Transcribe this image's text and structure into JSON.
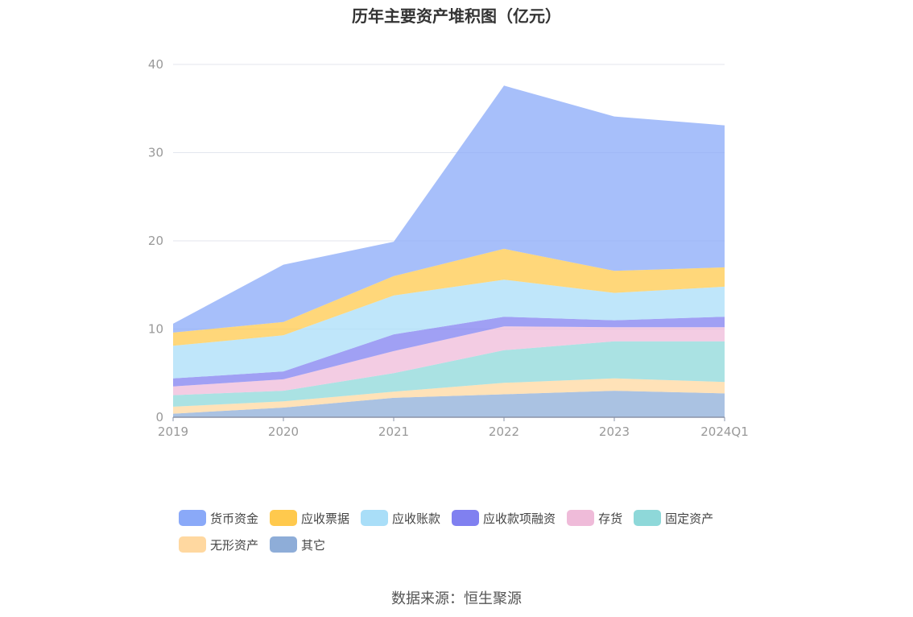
{
  "chart_data": {
    "type": "area",
    "stacked": true,
    "title": "历年主要资产堆积图（亿元）",
    "categories": [
      "2019",
      "2020",
      "2021",
      "2022",
      "2023",
      "2024Q1"
    ],
    "ylim": [
      0,
      40
    ],
    "yticks": [
      "0",
      "10",
      "20",
      "30",
      "40"
    ],
    "grid": true,
    "legend_position": "bottom",
    "series": [
      {
        "name": "其它",
        "color": "#8eadd8",
        "values": [
          0.4,
          1.1,
          2.2,
          2.6,
          3.0,
          2.7
        ]
      },
      {
        "name": "无形资产",
        "color": "#ffd8a0",
        "values": [
          0.8,
          0.7,
          0.7,
          1.3,
          1.4,
          1.3
        ]
      },
      {
        "name": "固定资产",
        "color": "#8ed8d9",
        "values": [
          1.3,
          1.2,
          2.1,
          3.7,
          4.2,
          4.6
        ]
      },
      {
        "name": "存货",
        "color": "#efbbd9",
        "values": [
          1.0,
          1.3,
          2.5,
          2.7,
          1.6,
          1.6
        ]
      },
      {
        "name": "应收款项融资",
        "color": "#8080f0",
        "values": [
          0.9,
          0.9,
          1.9,
          1.1,
          0.8,
          1.2
        ]
      },
      {
        "name": "应收账款",
        "color": "#a9def8",
        "values": [
          3.7,
          4.1,
          4.4,
          4.2,
          3.1,
          3.4
        ]
      },
      {
        "name": "应收票据",
        "color": "#ffc94d",
        "values": [
          1.5,
          1.5,
          2.2,
          3.5,
          2.5,
          2.2
        ]
      },
      {
        "name": "货币资金",
        "color": "#8aa9f8",
        "values": [
          1.0,
          6.5,
          3.9,
          18.5,
          17.5,
          16.1
        ]
      }
    ],
    "legend_order": [
      "货币资金",
      "应收票据",
      "应收账款",
      "应收款项融资",
      "存货",
      "固定资产",
      "无形资产",
      "其它"
    ]
  },
  "footer": {
    "source": "数据来源：恒生聚源"
  }
}
